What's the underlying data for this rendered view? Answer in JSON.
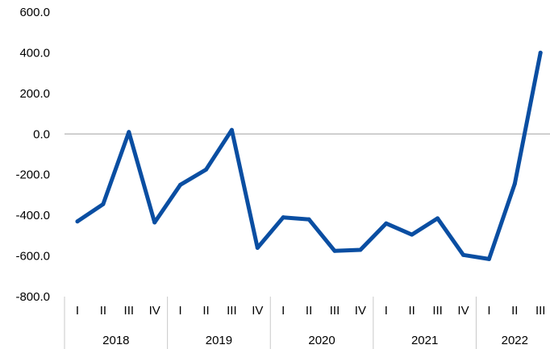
{
  "chart_data": {
    "type": "line",
    "title": "",
    "xlabel": "",
    "ylabel": "",
    "ylim": [
      -800,
      600
    ],
    "y_ticks": [
      "600.0",
      "400.0",
      "200.0",
      "0.0",
      "-200.0",
      "-400.0",
      "-600.0",
      "-800.0"
    ],
    "y_tick_values": [
      600,
      400,
      200,
      0,
      -200,
      -400,
      -600,
      -800
    ],
    "quarters": [
      "I",
      "II",
      "III",
      "IV",
      "I",
      "II",
      "III",
      "IV",
      "I",
      "II",
      "III",
      "IV",
      "I",
      "II",
      "III",
      "IV",
      "I",
      "II",
      "III"
    ],
    "years": [
      {
        "label": "2018",
        "quarters": 4
      },
      {
        "label": "2019",
        "quarters": 4
      },
      {
        "label": "2020",
        "quarters": 4
      },
      {
        "label": "2021",
        "quarters": 4
      },
      {
        "label": "2022",
        "quarters": 3
      }
    ],
    "series": [
      {
        "values": [
          -430,
          -345,
          10,
          -435,
          -250,
          -175,
          20,
          -560,
          -410,
          -420,
          -575,
          -570,
          -440,
          -495,
          -415,
          -595,
          -615,
          -245,
          400
        ]
      }
    ],
    "grid": false,
    "zero_line": true,
    "legend": "none",
    "colors": {
      "line": "#0A4EA2",
      "zero_line": "#C0C0C0",
      "separator": "#C8C8C8",
      "text": "#000000"
    }
  }
}
